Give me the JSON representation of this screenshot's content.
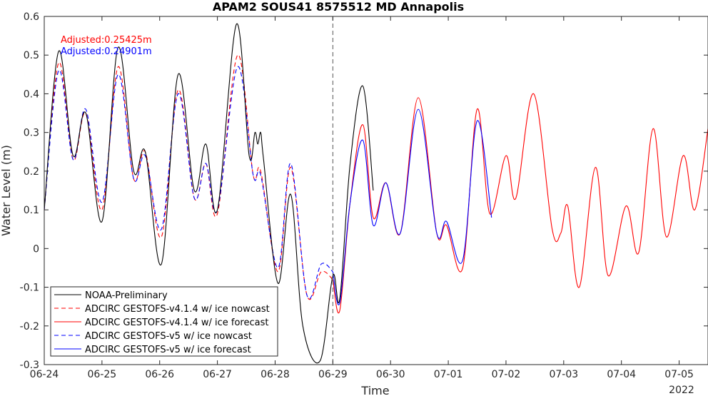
{
  "chart_data": {
    "type": "line",
    "title": "APAM2 SOUS41 8575512 MD Annapolis",
    "xlabel": "Time",
    "ylabel": "Water Level (m)",
    "year_label": "2022",
    "xlim": [
      "06-24",
      "07-05.5"
    ],
    "ylim": [
      -0.3,
      0.6
    ],
    "x_ticks": [
      "06-24",
      "06-25",
      "06-26",
      "06-27",
      "06-28",
      "06-29",
      "06-30",
      "07-01",
      "07-02",
      "07-03",
      "07-04",
      "07-05"
    ],
    "y_ticks": [
      "-0.3",
      "-0.2",
      "-0.1",
      "0",
      "0.1",
      "0.2",
      "0.3",
      "0.4",
      "0.5",
      "0.6"
    ],
    "nowcast_forecast_boundary": "06-29",
    "annotations": [
      {
        "text": "Adjusted:0.25425m",
        "color": "#ff0000"
      },
      {
        "text": "Adjusted:0.24901m",
        "color": "#0000ff"
      }
    ],
    "legend_position": "bottom-left",
    "series": [
      {
        "name": "NOAA-Preliminary",
        "color": "#000000",
        "dash": "solid",
        "points": [
          [
            0.0,
            0.1
          ],
          [
            0.25,
            0.51
          ],
          [
            0.5,
            0.24
          ],
          [
            0.72,
            0.35
          ],
          [
            1.0,
            0.07
          ],
          [
            1.28,
            0.52
          ],
          [
            1.55,
            0.2
          ],
          [
            1.75,
            0.25
          ],
          [
            2.03,
            -0.04
          ],
          [
            2.32,
            0.45
          ],
          [
            2.6,
            0.15
          ],
          [
            2.8,
            0.27
          ],
          [
            3.0,
            0.1
          ],
          [
            3.33,
            0.58
          ],
          [
            3.55,
            0.24
          ],
          [
            3.65,
            0.3
          ],
          [
            3.7,
            0.27
          ],
          [
            3.75,
            0.3
          ],
          [
            3.8,
            0.23
          ],
          [
            4.05,
            -0.09
          ],
          [
            4.27,
            0.14
          ],
          [
            4.48,
            -0.2
          ],
          [
            4.78,
            -0.29
          ],
          [
            5.0,
            -0.07
          ],
          [
            5.12,
            -0.13
          ],
          [
            5.3,
            0.22
          ],
          [
            5.52,
            0.42
          ],
          [
            5.7,
            0.15
          ]
        ]
      },
      {
        "name": "ADCIRC GESTOFS-v4.1.4 w/ ice nowcast",
        "color": "#ff0000",
        "dash": "dashed",
        "points": [
          [
            0.0,
            0.1
          ],
          [
            0.25,
            0.48
          ],
          [
            0.5,
            0.23
          ],
          [
            0.72,
            0.35
          ],
          [
            1.0,
            0.1
          ],
          [
            1.28,
            0.47
          ],
          [
            1.55,
            0.18
          ],
          [
            1.75,
            0.25
          ],
          [
            2.03,
            0.03
          ],
          [
            2.32,
            0.41
          ],
          [
            2.6,
            0.13
          ],
          [
            2.8,
            0.22
          ],
          [
            3.0,
            0.09
          ],
          [
            3.35,
            0.5
          ],
          [
            3.62,
            0.19
          ],
          [
            3.75,
            0.2
          ],
          [
            4.05,
            -0.06
          ],
          [
            4.27,
            0.21
          ],
          [
            4.55,
            -0.12
          ],
          [
            4.8,
            -0.06
          ],
          [
            5.0,
            -0.08
          ]
        ]
      },
      {
        "name": "ADCIRC GESTOFS-v4.1.4 w/ ice forecast",
        "color": "#ff0000",
        "dash": "solid",
        "points": [
          [
            5.0,
            -0.08
          ],
          [
            5.12,
            -0.16
          ],
          [
            5.3,
            0.12
          ],
          [
            5.52,
            0.32
          ],
          [
            5.7,
            0.08
          ],
          [
            5.92,
            0.17
          ],
          [
            6.17,
            0.04
          ],
          [
            6.48,
            0.39
          ],
          [
            6.8,
            0.04
          ],
          [
            6.97,
            0.06
          ],
          [
            7.25,
            -0.05
          ],
          [
            7.5,
            0.36
          ],
          [
            7.72,
            0.09
          ],
          [
            8.0,
            0.24
          ],
          [
            8.17,
            0.13
          ],
          [
            8.48,
            0.4
          ],
          [
            8.8,
            0.05
          ],
          [
            8.95,
            0.04
          ],
          [
            9.07,
            0.11
          ],
          [
            9.27,
            -0.1
          ],
          [
            9.55,
            0.21
          ],
          [
            9.77,
            -0.07
          ],
          [
            10.08,
            0.11
          ],
          [
            10.3,
            -0.01
          ],
          [
            10.55,
            0.31
          ],
          [
            10.78,
            0.03
          ],
          [
            11.07,
            0.24
          ],
          [
            11.27,
            0.1
          ],
          [
            11.5,
            0.31
          ]
        ]
      },
      {
        "name": "ADCIRC GESTOFS-v5 w/ ice nowcast",
        "color": "#0000ff",
        "dash": "dashed",
        "points": [
          [
            0.0,
            0.1
          ],
          [
            0.25,
            0.46
          ],
          [
            0.5,
            0.23
          ],
          [
            0.72,
            0.36
          ],
          [
            1.0,
            0.12
          ],
          [
            1.28,
            0.45
          ],
          [
            1.55,
            0.18
          ],
          [
            1.75,
            0.24
          ],
          [
            2.03,
            0.05
          ],
          [
            2.32,
            0.4
          ],
          [
            2.6,
            0.13
          ],
          [
            2.8,
            0.22
          ],
          [
            3.0,
            0.1
          ],
          [
            3.35,
            0.47
          ],
          [
            3.62,
            0.19
          ],
          [
            3.75,
            0.19
          ],
          [
            4.05,
            -0.05
          ],
          [
            4.27,
            0.22
          ],
          [
            4.55,
            -0.12
          ],
          [
            4.8,
            -0.04
          ],
          [
            5.0,
            -0.06
          ]
        ]
      },
      {
        "name": "ADCIRC GESTOFS-v5 w/ ice forecast",
        "color": "#0000ff",
        "dash": "solid",
        "points": [
          [
            5.0,
            -0.06
          ],
          [
            5.12,
            -0.14
          ],
          [
            5.3,
            0.12
          ],
          [
            5.52,
            0.28
          ],
          [
            5.7,
            0.06
          ],
          [
            5.92,
            0.17
          ],
          [
            6.17,
            0.04
          ],
          [
            6.48,
            0.36
          ],
          [
            6.8,
            0.04
          ],
          [
            6.97,
            0.07
          ],
          [
            7.25,
            -0.03
          ],
          [
            7.5,
            0.33
          ],
          [
            7.75,
            0.08
          ]
        ]
      }
    ]
  }
}
